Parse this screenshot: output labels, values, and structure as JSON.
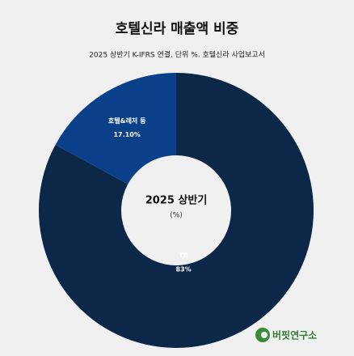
{
  "chart_data": {
    "type": "donut",
    "title": "호텔신라 매출액 비중",
    "subtitle": "2025 상반기 K-IFRS 연결. 단위 %. 호텔신라 사업보고서",
    "center_title": "2025 상반기",
    "center_subtitle": "(%)",
    "categories": [
      "TR",
      "호텔&레저 등"
    ],
    "values": [
      83,
      17.1
    ],
    "value_labels": [
      "83%",
      "17.10%"
    ],
    "colors": [
      "#0c2748",
      "#0a3f8a"
    ],
    "source": "버핏연구소"
  }
}
